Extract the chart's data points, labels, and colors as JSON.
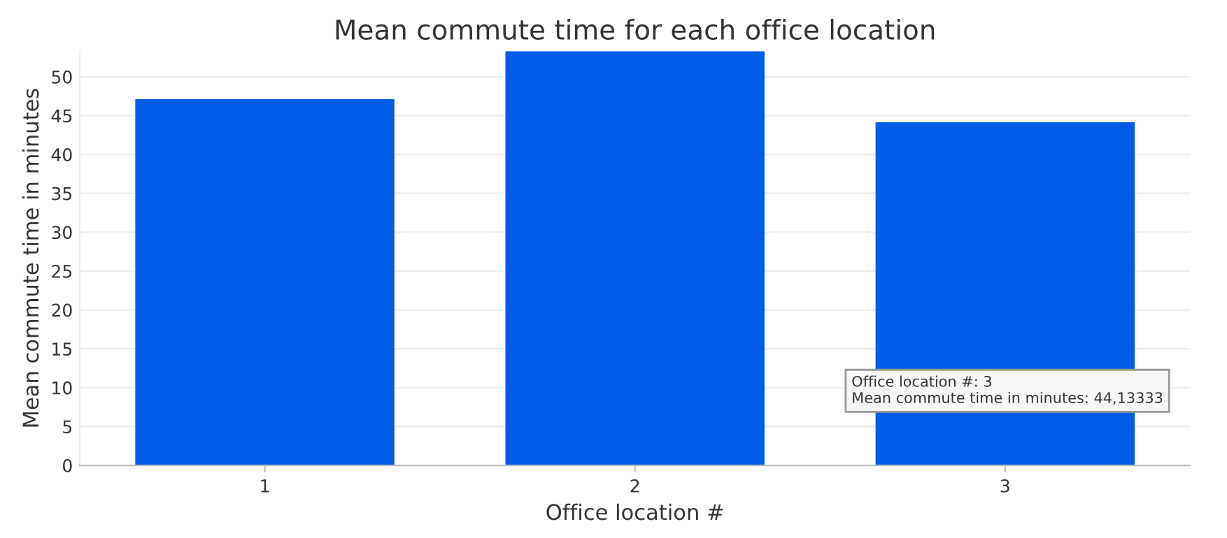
{
  "chart_data": {
    "type": "bar",
    "title": "Mean commute time for each office location",
    "xlabel": "Office location #",
    "ylabel": "Mean commute time in minutes",
    "categories": [
      "1",
      "2",
      "3"
    ],
    "values": [
      47.1,
      53.3,
      44.13333
    ],
    "color": "#005ce6",
    "ylim": [
      0,
      53.3
    ],
    "yticks": [
      0,
      5,
      10,
      15,
      20,
      25,
      30,
      35,
      40,
      45,
      50
    ],
    "grid": "y",
    "annotations": [
      "Office location #: 3\nMean commute time in minutes: 44,13333"
    ]
  }
}
